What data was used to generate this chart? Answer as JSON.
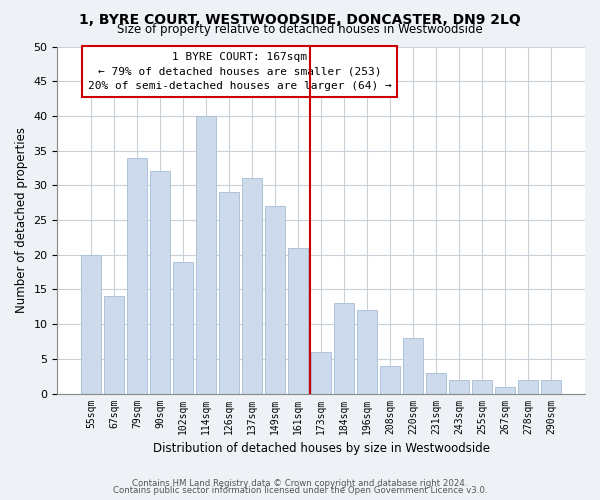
{
  "title": "1, BYRE COURT, WESTWOODSIDE, DONCASTER, DN9 2LQ",
  "subtitle": "Size of property relative to detached houses in Westwoodside",
  "xlabel": "Distribution of detached houses by size in Westwoodside",
  "ylabel": "Number of detached properties",
  "bar_labels": [
    "55sqm",
    "67sqm",
    "79sqm",
    "90sqm",
    "102sqm",
    "114sqm",
    "126sqm",
    "137sqm",
    "149sqm",
    "161sqm",
    "173sqm",
    "184sqm",
    "196sqm",
    "208sqm",
    "220sqm",
    "231sqm",
    "243sqm",
    "255sqm",
    "267sqm",
    "278sqm",
    "290sqm"
  ],
  "bar_values": [
    20,
    14,
    34,
    32,
    19,
    40,
    29,
    31,
    27,
    21,
    6,
    13,
    12,
    4,
    8,
    3,
    2,
    2,
    1,
    2,
    2
  ],
  "bar_color": "#ccdaeb",
  "bar_edge_color": "#aec3d8",
  "vline_x": 10,
  "vline_color": "#cc0000",
  "ylim": [
    0,
    50
  ],
  "yticks": [
    0,
    5,
    10,
    15,
    20,
    25,
    30,
    35,
    40,
    45,
    50
  ],
  "annotation_title": "1 BYRE COURT: 167sqm",
  "annotation_line1": "← 79% of detached houses are smaller (253)",
  "annotation_line2": "20% of semi-detached houses are larger (64) →",
  "annotation_box_facecolor": "#ffffff",
  "annotation_box_edgecolor": "#cc0000",
  "footnote1": "Contains HM Land Registry data © Crown copyright and database right 2024.",
  "footnote2": "Contains public sector information licensed under the Open Government Licence v3.0.",
  "fig_facecolor": "#eef2f7",
  "ax_facecolor": "#ffffff",
  "grid_color": "#c8d0da"
}
